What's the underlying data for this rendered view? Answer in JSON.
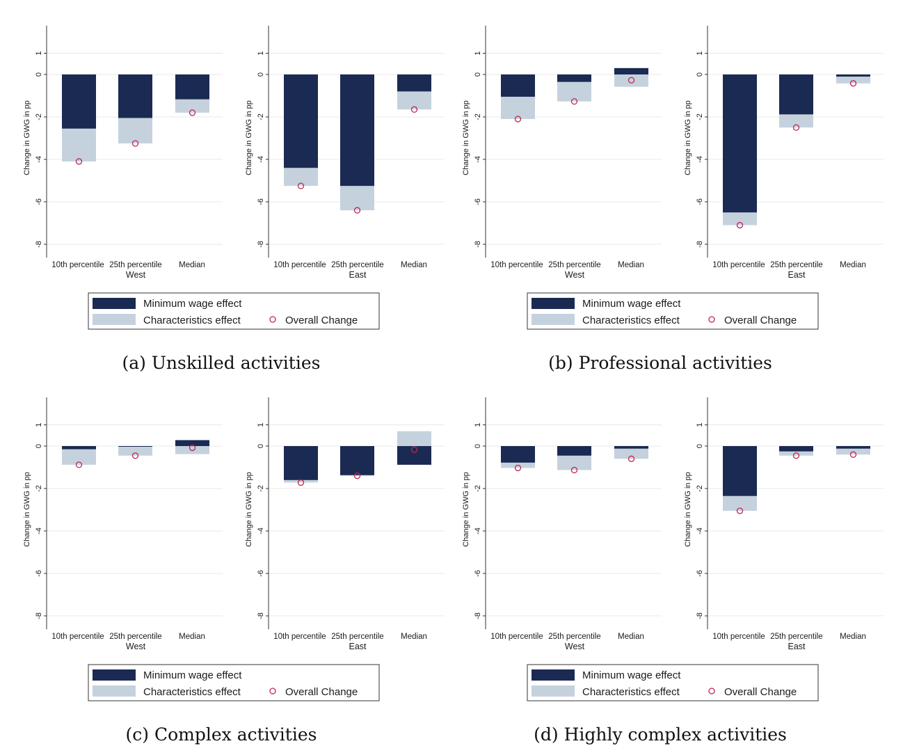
{
  "figure": {
    "ylabel": "Change in GWG in pp",
    "yticks": [
      1,
      0,
      -2,
      -4,
      -6,
      -8
    ],
    "ylim": [
      -8.5,
      2.3
    ],
    "legend": {
      "min_wage": "Minimum wage effect",
      "characteristics": "Characteristics effect",
      "overall": "Overall Change"
    },
    "colors": {
      "min_wage": "#1b2a52",
      "characteristics": "#c5d2de",
      "overall_marker": "#c0264b",
      "grid": "#e8e8e8"
    }
  },
  "panels": [
    {
      "caption": "(a) Unskilled activities",
      "charts": [
        {
          "region": "West",
          "categories": [
            "10th percentile",
            "25th percentile",
            "Median"
          ],
          "min_wage": [
            -2.55,
            -2.05,
            -1.17
          ],
          "total": [
            -4.1,
            -3.25,
            -1.8
          ],
          "overall": [
            -4.1,
            -3.25,
            -1.8
          ]
        },
        {
          "region": "East",
          "categories": [
            "10th percentile",
            "25th percentile",
            "Median"
          ],
          "min_wage": [
            -4.4,
            -5.25,
            -0.8
          ],
          "total": [
            -5.25,
            -6.4,
            -1.65
          ],
          "overall": [
            -5.25,
            -6.4,
            -1.65
          ]
        }
      ]
    },
    {
      "caption": "(b) Professional activities",
      "charts": [
        {
          "region": "West",
          "categories": [
            "10th percentile",
            "25th percentile",
            "Median"
          ],
          "min_wage": [
            -1.05,
            -0.35,
            0.3
          ],
          "total": [
            -2.1,
            -1.27,
            -0.58
          ],
          "overall": [
            -2.1,
            -1.27,
            -0.27
          ]
        },
        {
          "region": "East",
          "categories": [
            "10th percentile",
            "25th percentile",
            "Median"
          ],
          "min_wage": [
            -6.5,
            -1.88,
            -0.1
          ],
          "total": [
            -7.1,
            -2.5,
            -0.42
          ],
          "overall": [
            -7.1,
            -2.5,
            -0.42
          ]
        }
      ]
    },
    {
      "caption": "(c) Complex activities",
      "charts": [
        {
          "region": "West",
          "categories": [
            "10th percentile",
            "25th percentile",
            "Median"
          ],
          "min_wage": [
            -0.15,
            -0.03,
            0.28
          ],
          "total": [
            -0.88,
            -0.45,
            -0.38
          ],
          "overall": [
            -0.88,
            -0.45,
            -0.08
          ]
        },
        {
          "region": "East",
          "categories": [
            "10th percentile",
            "25th percentile",
            "Median"
          ],
          "min_wage": [
            -1.6,
            -1.37,
            -0.88
          ],
          "total": [
            -1.72,
            -1.4,
            0.7
          ],
          "overall": [
            -1.72,
            -1.4,
            -0.17
          ]
        }
      ]
    },
    {
      "caption": "(d) Highly complex activities",
      "charts": [
        {
          "region": "West",
          "categories": [
            "10th percentile",
            "25th percentile",
            "Median"
          ],
          "min_wage": [
            -0.78,
            -0.45,
            -0.12
          ],
          "total": [
            -1.03,
            -1.13,
            -0.6
          ],
          "overall": [
            -1.03,
            -1.13,
            -0.6
          ]
        },
        {
          "region": "East",
          "categories": [
            "10th percentile",
            "25th percentile",
            "Median"
          ],
          "min_wage": [
            -2.35,
            -0.25,
            -0.12
          ],
          "total": [
            -3.05,
            -0.45,
            -0.4
          ],
          "overall": [
            -3.05,
            -0.45,
            -0.4
          ]
        }
      ]
    }
  ],
  "chart_data": [
    {
      "type": "bar",
      "panel": "(a) Unskilled activities",
      "region": "West",
      "categories": [
        "10th percentile",
        "25th percentile",
        "Median"
      ],
      "ylabel": "Change in GWG in pp",
      "ylim": [
        -8.5,
        2.3
      ],
      "series": [
        {
          "name": "Minimum wage effect",
          "values": [
            -2.55,
            -2.05,
            -1.17
          ]
        },
        {
          "name": "Characteristics effect",
          "values": [
            -1.55,
            -1.2,
            -0.63
          ]
        },
        {
          "name": "Overall Change",
          "values": [
            -4.1,
            -3.25,
            -1.8
          ]
        }
      ]
    },
    {
      "type": "bar",
      "panel": "(a) Unskilled activities",
      "region": "East",
      "categories": [
        "10th percentile",
        "25th percentile",
        "Median"
      ],
      "ylabel": "Change in GWG in pp",
      "ylim": [
        -8.5,
        2.3
      ],
      "series": [
        {
          "name": "Minimum wage effect",
          "values": [
            -4.4,
            -5.25,
            -0.8
          ]
        },
        {
          "name": "Characteristics effect",
          "values": [
            -0.85,
            -1.15,
            -0.85
          ]
        },
        {
          "name": "Overall Change",
          "values": [
            -5.25,
            -6.4,
            -1.65
          ]
        }
      ]
    },
    {
      "type": "bar",
      "panel": "(b) Professional activities",
      "region": "West",
      "categories": [
        "10th percentile",
        "25th percentile",
        "Median"
      ],
      "ylabel": "Change in GWG in pp",
      "ylim": [
        -8.5,
        2.3
      ],
      "series": [
        {
          "name": "Minimum wage effect",
          "values": [
            -1.05,
            -0.35,
            0.3
          ]
        },
        {
          "name": "Characteristics effect",
          "values": [
            -1.05,
            -0.92,
            -0.58
          ]
        },
        {
          "name": "Overall Change",
          "values": [
            -2.1,
            -1.27,
            -0.27
          ]
        }
      ]
    },
    {
      "type": "bar",
      "panel": "(b) Professional activities",
      "region": "East",
      "categories": [
        "10th percentile",
        "25th percentile",
        "Median"
      ],
      "ylabel": "Change in GWG in pp",
      "ylim": [
        -8.5,
        2.3
      ],
      "series": [
        {
          "name": "Minimum wage effect",
          "values": [
            -6.5,
            -1.88,
            -0.1
          ]
        },
        {
          "name": "Characteristics effect",
          "values": [
            -0.6,
            -0.62,
            -0.32
          ]
        },
        {
          "name": "Overall Change",
          "values": [
            -7.1,
            -2.5,
            -0.42
          ]
        }
      ]
    },
    {
      "type": "bar",
      "panel": "(c) Complex activities",
      "region": "West",
      "categories": [
        "10th percentile",
        "25th percentile",
        "Median"
      ],
      "ylabel": "Change in GWG in pp",
      "ylim": [
        -8.5,
        2.3
      ],
      "series": [
        {
          "name": "Minimum wage effect",
          "values": [
            -0.15,
            -0.03,
            0.28
          ]
        },
        {
          "name": "Characteristics effect",
          "values": [
            -0.73,
            -0.42,
            -0.38
          ]
        },
        {
          "name": "Overall Change",
          "values": [
            -0.88,
            -0.45,
            -0.08
          ]
        }
      ]
    },
    {
      "type": "bar",
      "panel": "(c) Complex activities",
      "region": "East",
      "categories": [
        "10th percentile",
        "25th percentile",
        "Median"
      ],
      "ylabel": "Change in GWG in pp",
      "ylim": [
        -8.5,
        2.3
      ],
      "series": [
        {
          "name": "Minimum wage effect",
          "values": [
            -1.6,
            -1.37,
            -0.88
          ]
        },
        {
          "name": "Characteristics effect",
          "values": [
            -0.12,
            -0.03,
            0.7
          ]
        },
        {
          "name": "Overall Change",
          "values": [
            -1.72,
            -1.4,
            -0.17
          ]
        }
      ]
    },
    {
      "type": "bar",
      "panel": "(d) Highly complex activities",
      "region": "West",
      "categories": [
        "10th percentile",
        "25th percentile",
        "Median"
      ],
      "ylabel": "Change in GWG in pp",
      "ylim": [
        -8.5,
        2.3
      ],
      "series": [
        {
          "name": "Minimum wage effect",
          "values": [
            -0.78,
            -0.45,
            -0.12
          ]
        },
        {
          "name": "Characteristics effect",
          "values": [
            -0.25,
            -0.68,
            -0.48
          ]
        },
        {
          "name": "Overall Change",
          "values": [
            -1.03,
            -1.13,
            -0.6
          ]
        }
      ]
    },
    {
      "type": "bar",
      "panel": "(d) Highly complex activities",
      "region": "East",
      "categories": [
        "10th percentile",
        "25th percentile",
        "Median"
      ],
      "ylabel": "Change in GWG in pp",
      "ylim": [
        -8.5,
        2.3
      ],
      "series": [
        {
          "name": "Minimum wage effect",
          "values": [
            -2.35,
            -0.25,
            -0.12
          ]
        },
        {
          "name": "Characteristics effect",
          "values": [
            -0.7,
            -0.2,
            -0.28
          ]
        },
        {
          "name": "Overall Change",
          "values": [
            -3.05,
            -0.45,
            -0.4
          ]
        }
      ]
    }
  ]
}
